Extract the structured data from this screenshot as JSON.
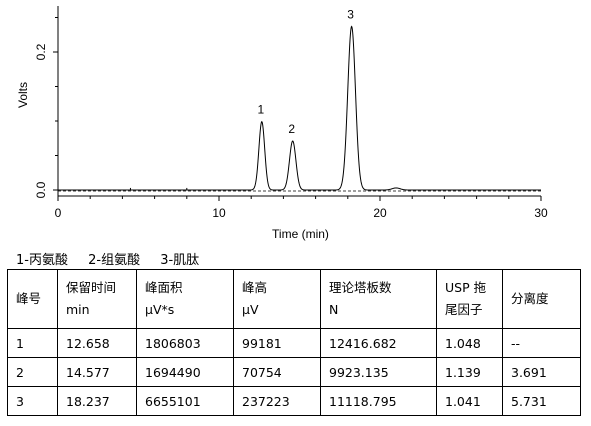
{
  "chart_data": {
    "type": "line",
    "title": "",
    "xlabel": "Time (min)",
    "ylabel": "Volts",
    "xlim": [
      0,
      30
    ],
    "ylim": [
      0,
      0.26
    ],
    "x_ticks": [
      0,
      10,
      20,
      30
    ],
    "y_ticks": [
      0.0,
      0.2
    ],
    "x_tick_labels": [
      "0",
      "10",
      "20",
      "30"
    ],
    "y_tick_labels": [
      "0.0",
      "0.2"
    ],
    "baseline_volts": 0.0,
    "peaks": [
      {
        "label": "1",
        "time": 12.658,
        "height": 0.099
      },
      {
        "label": "2",
        "time": 14.577,
        "height": 0.071
      },
      {
        "label": "3",
        "time": 18.237,
        "height": 0.237
      },
      {
        "label": "",
        "time": 21.0,
        "height": 0.003
      }
    ],
    "series": [
      {
        "values_note": "",
        "style": "solid"
      },
      {
        "values_note": "",
        "style": "dashed"
      }
    ]
  },
  "legend": {
    "items": [
      "1-丙氨酸",
      "2-组氨酸",
      "3-肌肽"
    ]
  },
  "table": {
    "headers": [
      [
        "峰号"
      ],
      [
        "保留时间",
        "min"
      ],
      [
        "峰面积",
        "μV*s"
      ],
      [
        "峰高",
        "μV"
      ],
      [
        "理论塔板数",
        "N"
      ],
      [
        "USP 拖",
        "尾因子"
      ],
      [
        "分离度"
      ]
    ],
    "rows": [
      [
        "1",
        "12.658",
        "1806803",
        "99181",
        "12416.682",
        "1.048",
        "--"
      ],
      [
        "2",
        "14.577",
        "1694490",
        "70754",
        "9923.135",
        "1.139",
        "3.691"
      ],
      [
        "3",
        "18.237",
        "6655101",
        "237223",
        "11118.795",
        "1.041",
        "5.731"
      ]
    ]
  }
}
